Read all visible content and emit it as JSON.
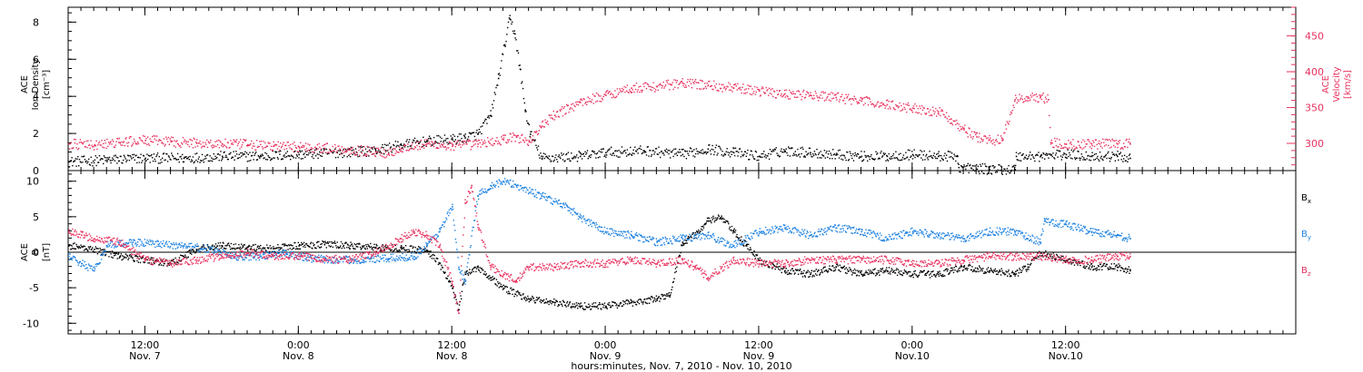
{
  "colors": {
    "density": "#000000",
    "velocity": "#e8325f",
    "bx": "#000000",
    "by": "#1f82e0",
    "bz": "#e8325f",
    "axes": "#000000"
  },
  "chart_data": [
    {
      "type": "scatter",
      "panel": "top",
      "ylabel": [
        "ACE",
        "Ion Density",
        "[cm⁻³]"
      ],
      "y2label": [
        "ACE",
        "Velocity",
        "[km/s]"
      ],
      "xlim": [
        0,
        96
      ],
      "ylim": [
        0,
        8.8
      ],
      "yticks": [
        0,
        2,
        4,
        6,
        8
      ],
      "y2lim": [
        262,
        490
      ],
      "y2ticks": [
        300,
        350,
        400,
        450
      ],
      "zero_line": false,
      "series": [
        {
          "key": "density",
          "color_key": "density",
          "axis": "left",
          "points": [
            [
              0,
              0.5
            ],
            [
              3,
              0.6
            ],
            [
              6,
              0.7
            ],
            [
              9,
              0.7
            ],
            [
              12,
              0.8
            ],
            [
              15,
              0.8
            ],
            [
              18,
              0.9
            ],
            [
              21,
              1.0
            ],
            [
              24,
              1.1
            ],
            [
              26,
              1.4
            ],
            [
              28,
              1.6
            ],
            [
              30,
              1.7
            ],
            [
              31,
              1.8
            ],
            [
              32,
              2.0
            ],
            [
              33,
              3.0
            ],
            [
              33.6,
              5.0
            ],
            [
              34.1,
              6.8
            ],
            [
              34.5,
              8.2
            ],
            [
              34.9,
              7.4
            ],
            [
              35.3,
              5.5
            ],
            [
              35.7,
              3.3
            ],
            [
              36.1,
              2.0
            ],
            [
              37,
              0.7
            ],
            [
              40,
              0.8
            ],
            [
              42,
              1.0
            ],
            [
              45,
              1.1
            ],
            [
              48,
              0.9
            ],
            [
              50,
              1.2
            ],
            [
              52,
              1.0
            ],
            [
              54,
              0.8
            ],
            [
              56,
              1.1
            ],
            [
              58,
              1.0
            ],
            [
              60,
              0.9
            ],
            [
              62,
              0.8
            ],
            [
              64,
              0.8
            ],
            [
              66,
              0.9
            ],
            [
              68,
              0.8
            ],
            [
              69.5,
              0.8
            ],
            [
              69.6,
              0.2
            ],
            [
              72,
              0.1
            ],
            [
              74,
              0.1
            ],
            [
              74.1,
              0.8
            ],
            [
              76,
              0.8
            ],
            [
              78,
              0.9
            ],
            [
              80,
              0.8
            ],
            [
              82,
              0.8
            ],
            [
              83,
              0.7
            ]
          ]
        },
        {
          "key": "velocity",
          "color_key": "velocity",
          "axis": "right",
          "points": [
            [
              0,
              300
            ],
            [
              2,
              298
            ],
            [
              4,
              302
            ],
            [
              6,
              305
            ],
            [
              8,
              303
            ],
            [
              10,
              301
            ],
            [
              12,
              300
            ],
            [
              14,
              299
            ],
            [
              16,
              297
            ],
            [
              18,
              296
            ],
            [
              20,
              294
            ],
            [
              22,
              292
            ],
            [
              24,
              289
            ],
            [
              25,
              287
            ],
            [
              26,
              294
            ],
            [
              28,
              300
            ],
            [
              30,
              297
            ],
            [
              32,
              300
            ],
            [
              34,
              306
            ],
            [
              35,
              310
            ],
            [
              36,
              303
            ],
            [
              37,
              325
            ],
            [
              38,
              340
            ],
            [
              40,
              358
            ],
            [
              42,
              368
            ],
            [
              44,
              378
            ],
            [
              46,
              380
            ],
            [
              48,
              385
            ],
            [
              50,
              382
            ],
            [
              52,
              378
            ],
            [
              54,
              374
            ],
            [
              56,
              370
            ],
            [
              58,
              368
            ],
            [
              60,
              365
            ],
            [
              62,
              360
            ],
            [
              64,
              355
            ],
            [
              66,
              350
            ],
            [
              68,
              345
            ],
            [
              69,
              335
            ],
            [
              70,
              320
            ],
            [
              71,
              310
            ],
            [
              72,
              306
            ],
            [
              73,
              305
            ],
            [
              74,
              362
            ],
            [
              75,
              364
            ],
            [
              76,
              366
            ],
            [
              76.6,
              362
            ],
            [
              76.8,
              302
            ],
            [
              78,
              300
            ],
            [
              80,
              300
            ],
            [
              82,
              300
            ],
            [
              83,
              300
            ]
          ]
        }
      ]
    },
    {
      "type": "scatter",
      "panel": "bottom",
      "ylabel": [
        "ACE",
        "B",
        "[nT]"
      ],
      "xlabel": "hours:minutes, Nov.  7, 2010 - Nov. 10, 2010",
      "xlim": [
        0,
        96
      ],
      "ylim": [
        -11.5,
        11.5
      ],
      "yticks": [
        -10,
        -5,
        0,
        5,
        10
      ],
      "zero_line": true,
      "xticks": [
        {
          "x": 6,
          "time": "12:00",
          "date": "Nov. 7"
        },
        {
          "x": 18,
          "time": "0:00",
          "date": "Nov. 8"
        },
        {
          "x": 30,
          "time": "12:00",
          "date": "Nov. 8"
        },
        {
          "x": 42,
          "time": "0:00",
          "date": "Nov. 9"
        },
        {
          "x": 54,
          "time": "12:00",
          "date": "Nov. 9"
        },
        {
          "x": 66,
          "time": "0:00",
          "date": "Nov.10"
        },
        {
          "x": 78,
          "time": "12:00",
          "date": "Nov.10"
        }
      ],
      "series": [
        {
          "key": "bx",
          "name": "B",
          "sub": "x",
          "color_key": "bx",
          "points": [
            [
              0,
              1.0
            ],
            [
              2,
              0.5
            ],
            [
              4,
              -0.5
            ],
            [
              6,
              -1.0
            ],
            [
              8,
              -1.5
            ],
            [
              10,
              0.5
            ],
            [
              12,
              1.0
            ],
            [
              14,
              0.8
            ],
            [
              16,
              0.6
            ],
            [
              18,
              1.0
            ],
            [
              20,
              1.2
            ],
            [
              22,
              1.0
            ],
            [
              24,
              0.8
            ],
            [
              26,
              0.6
            ],
            [
              28,
              0.4
            ],
            [
              29,
              -1.5
            ],
            [
              30,
              -5.0
            ],
            [
              30.5,
              -8.0
            ],
            [
              31,
              -3.0
            ],
            [
              32,
              -2.0
            ],
            [
              33,
              -3.5
            ],
            [
              34,
              -5.0
            ],
            [
              36,
              -6.5
            ],
            [
              38,
              -7.0
            ],
            [
              40,
              -7.5
            ],
            [
              42,
              -7.5
            ],
            [
              44,
              -7.0
            ],
            [
              46,
              -6.5
            ],
            [
              47,
              -6.0
            ],
            [
              48,
              1.5
            ],
            [
              49,
              2.5
            ],
            [
              50,
              4.5
            ],
            [
              51,
              5.0
            ],
            [
              52,
              3.0
            ],
            [
              53,
              1.0
            ],
            [
              54,
              -1.0
            ],
            [
              56,
              -2.5
            ],
            [
              58,
              -3.0
            ],
            [
              60,
              -2.0
            ],
            [
              62,
              -3.0
            ],
            [
              64,
              -2.5
            ],
            [
              66,
              -3.0
            ],
            [
              68,
              -3.0
            ],
            [
              70,
              -2.0
            ],
            [
              72,
              -2.5
            ],
            [
              74,
              -3.0
            ],
            [
              75,
              -2.0
            ],
            [
              76,
              0.0
            ],
            [
              78,
              -1.0
            ],
            [
              80,
              -2.0
            ],
            [
              82,
              -2.0
            ],
            [
              83,
              -2.5
            ]
          ]
        },
        {
          "key": "by",
          "name": "B",
          "sub": "y",
          "color_key": "by",
          "points": [
            [
              0,
              -0.5
            ],
            [
              1,
              -1.5
            ],
            [
              2,
              -2.5
            ],
            [
              3,
              1.0
            ],
            [
              5,
              1.5
            ],
            [
              7,
              1.2
            ],
            [
              9,
              1.0
            ],
            [
              11,
              0.5
            ],
            [
              13,
              -0.5
            ],
            [
              15,
              -0.5
            ],
            [
              17,
              0.0
            ],
            [
              19,
              -0.8
            ],
            [
              21,
              -1.0
            ],
            [
              23,
              -1.0
            ],
            [
              25,
              -0.8
            ],
            [
              27,
              -0.5
            ],
            [
              28,
              1.0
            ],
            [
              29,
              3.0
            ],
            [
              30,
              6.5
            ],
            [
              30.5,
              -2.0
            ],
            [
              31,
              -4.0
            ],
            [
              32,
              8.0
            ],
            [
              33,
              9.5
            ],
            [
              34,
              10.0
            ],
            [
              35,
              9.5
            ],
            [
              37,
              8.0
            ],
            [
              39,
              6.5
            ],
            [
              40,
              5.0
            ],
            [
              42,
              3.0
            ],
            [
              44,
              2.5
            ],
            [
              46,
              1.5
            ],
            [
              48,
              2.0
            ],
            [
              50,
              2.5
            ],
            [
              52,
              1.0
            ],
            [
              54,
              3.0
            ],
            [
              56,
              3.5
            ],
            [
              58,
              2.5
            ],
            [
              60,
              3.5
            ],
            [
              62,
              3.0
            ],
            [
              64,
              2.0
            ],
            [
              66,
              3.0
            ],
            [
              68,
              2.5
            ],
            [
              70,
              2.0
            ],
            [
              72,
              3.0
            ],
            [
              74,
              3.0
            ],
            [
              76,
              1.5
            ],
            [
              76.3,
              4.5
            ],
            [
              78,
              4.0
            ],
            [
              80,
              3.0
            ],
            [
              82,
              2.5
            ],
            [
              83,
              2.0
            ]
          ]
        },
        {
          "key": "bz",
          "name": "B",
          "sub": "z",
          "color_key": "bz",
          "points": [
            [
              0,
              3.0
            ],
            [
              1,
              2.5
            ],
            [
              2,
              2.0
            ],
            [
              4,
              1.5
            ],
            [
              6,
              -1.0
            ],
            [
              8,
              -1.5
            ],
            [
              10,
              -1.0
            ],
            [
              12,
              -0.5
            ],
            [
              14,
              0.0
            ],
            [
              16,
              -0.5
            ],
            [
              18,
              -0.5
            ],
            [
              20,
              -0.8
            ],
            [
              22,
              -1.0
            ],
            [
              24,
              0.0
            ],
            [
              26,
              2.0
            ],
            [
              27,
              3.0
            ],
            [
              28,
              2.5
            ],
            [
              29,
              1.0
            ],
            [
              30,
              -4.0
            ],
            [
              30.5,
              -8.5
            ],
            [
              31,
              7.0
            ],
            [
              31.5,
              9.5
            ],
            [
              32,
              4.0
            ],
            [
              33,
              -2.0
            ],
            [
              34,
              -3.0
            ],
            [
              35,
              -4.0
            ],
            [
              36,
              -2.0
            ],
            [
              38,
              -2.0
            ],
            [
              40,
              -1.5
            ],
            [
              42,
              -1.5
            ],
            [
              44,
              -1.0
            ],
            [
              46,
              -1.5
            ],
            [
              48,
              -1.0
            ],
            [
              49,
              -2.0
            ],
            [
              50,
              -3.5
            ],
            [
              52,
              -1.0
            ],
            [
              54,
              -1.5
            ],
            [
              56,
              -1.5
            ],
            [
              58,
              -1.0
            ],
            [
              60,
              -1.0
            ],
            [
              62,
              -1.0
            ],
            [
              64,
              -1.0
            ],
            [
              66,
              -1.5
            ],
            [
              68,
              -1.5
            ],
            [
              70,
              -1.0
            ],
            [
              72,
              -0.5
            ],
            [
              74,
              -0.5
            ],
            [
              76,
              -0.5
            ],
            [
              78,
              -1.0
            ],
            [
              80,
              -1.0
            ],
            [
              82,
              -0.5
            ],
            [
              83,
              -0.5
            ]
          ]
        }
      ]
    }
  ]
}
